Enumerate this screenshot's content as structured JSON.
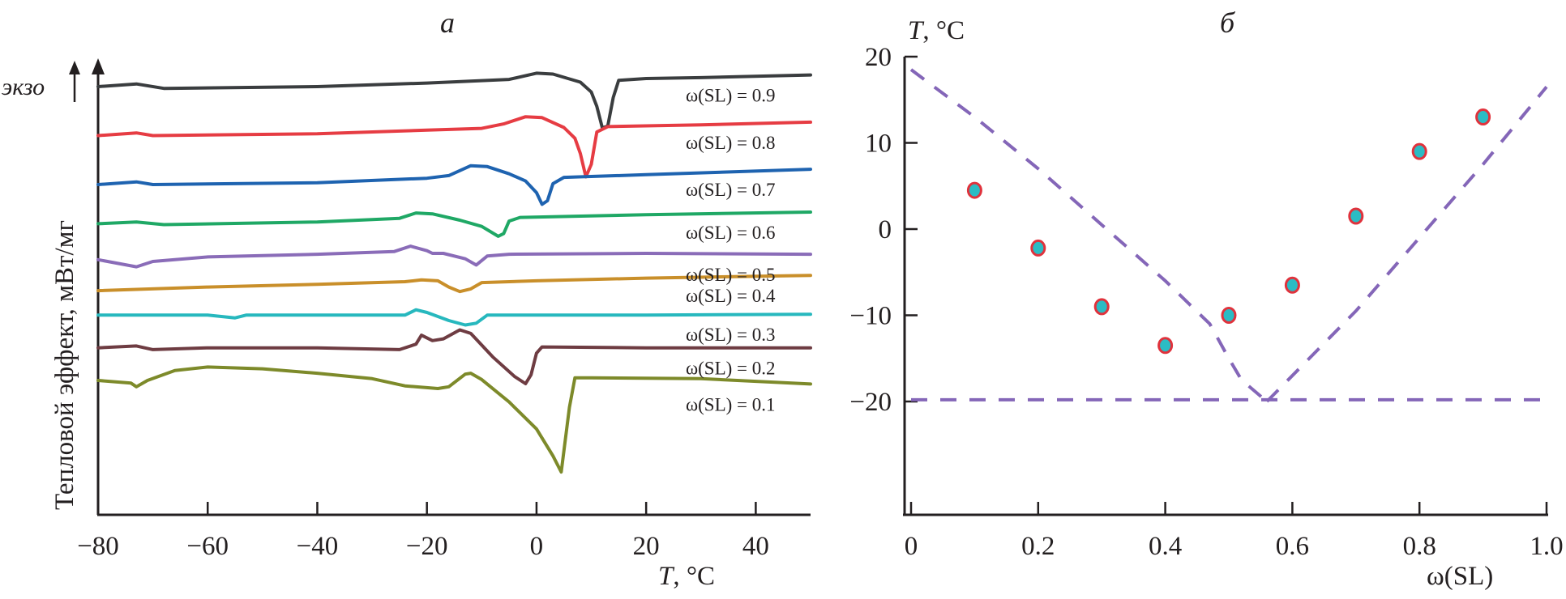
{
  "chart_data": [
    {
      "panel": "a",
      "type": "line",
      "title": "а",
      "xlabel": "T, °C",
      "xlabel_italic_part": "T",
      "xlabel_rest": ", °C",
      "ylabel": "Тепловой эффект, мВт/мг",
      "exo_label": "экзо",
      "xlim": [
        -80,
        50
      ],
      "xticks": [
        -80,
        -60,
        -40,
        -20,
        0,
        20,
        40
      ],
      "xtick_labels": [
        "−80",
        "−60",
        "−40",
        "−20",
        "0",
        "20",
        "40"
      ],
      "y_units": "relative (curves offset vertically, exo up)",
      "series": [
        {
          "name": "ω(SL) = 0.9",
          "color": "#3a3d3f",
          "baseline": 9.0,
          "points": [
            [
              -80,
              0
            ],
            [
              -73,
              0.15
            ],
            [
              -68,
              -0.1
            ],
            [
              -40,
              0
            ],
            [
              -20,
              0.2
            ],
            [
              -5,
              0.4
            ],
            [
              0,
              0.75
            ],
            [
              3,
              0.7
            ],
            [
              8,
              0.25
            ],
            [
              10,
              -0.3
            ],
            [
              11,
              -1.1
            ],
            [
              12,
              -2.3
            ],
            [
              13,
              -2.2
            ],
            [
              14,
              -0.6
            ],
            [
              15,
              0.35
            ],
            [
              20,
              0.45
            ],
            [
              30,
              0.5
            ],
            [
              50,
              0.65
            ]
          ]
        },
        {
          "name": "ω(SL) = 0.8",
          "color": "#e63c43",
          "baseline": 7.5,
          "points": [
            [
              -80,
              0
            ],
            [
              -73,
              0.15
            ],
            [
              -70,
              0
            ],
            [
              -40,
              0.1
            ],
            [
              -20,
              0.3
            ],
            [
              -10,
              0.4
            ],
            [
              -6,
              0.65
            ],
            [
              -2,
              1.05
            ],
            [
              1,
              1.0
            ],
            [
              5,
              0.45
            ],
            [
              7,
              -0.15
            ],
            [
              8,
              -1.0
            ],
            [
              9,
              -2.3
            ],
            [
              10,
              -1.6
            ],
            [
              11,
              0.2
            ],
            [
              13,
              0.5
            ],
            [
              30,
              0.6
            ],
            [
              50,
              0.75
            ]
          ]
        },
        {
          "name": "ω(SL) = 0.7",
          "color": "#1e63b0",
          "baseline": 6.0,
          "points": [
            [
              -80,
              0
            ],
            [
              -73,
              0.15
            ],
            [
              -70,
              0
            ],
            [
              -40,
              0.1
            ],
            [
              -20,
              0.35
            ],
            [
              -16,
              0.5
            ],
            [
              -12,
              1.05
            ],
            [
              -9,
              1.0
            ],
            [
              -5,
              0.6
            ],
            [
              -2,
              0.2
            ],
            [
              0,
              -0.45
            ],
            [
              1,
              -1.1
            ],
            [
              2,
              -0.9
            ],
            [
              3,
              0.05
            ],
            [
              5,
              0.4
            ],
            [
              20,
              0.55
            ],
            [
              50,
              0.85
            ]
          ]
        },
        {
          "name": "ω(SL) = 0.6",
          "color": "#1fa865",
          "baseline": 4.8,
          "points": [
            [
              -80,
              0
            ],
            [
              -73,
              0.1
            ],
            [
              -68,
              -0.05
            ],
            [
              -40,
              0.1
            ],
            [
              -25,
              0.3
            ],
            [
              -22,
              0.6
            ],
            [
              -19,
              0.55
            ],
            [
              -14,
              0.2
            ],
            [
              -10,
              -0.15
            ],
            [
              -7,
              -0.7
            ],
            [
              -6,
              -0.55
            ],
            [
              -5,
              0.15
            ],
            [
              -3,
              0.35
            ],
            [
              20,
              0.5
            ],
            [
              50,
              0.65
            ]
          ]
        },
        {
          "name": "ω(SL) = 0.5",
          "color": "#8a6cb8",
          "baseline": 3.7,
          "points": [
            [
              -80,
              0
            ],
            [
              -73,
              -0.4
            ],
            [
              -70,
              -0.1
            ],
            [
              -60,
              0.15
            ],
            [
              -40,
              0.3
            ],
            [
              -26,
              0.45
            ],
            [
              -23,
              0.75
            ],
            [
              -20,
              0.5
            ],
            [
              -19,
              0.35
            ],
            [
              -17,
              0.35
            ],
            [
              -13,
              0.05
            ],
            [
              -11,
              -0.3
            ],
            [
              -9,
              0.2
            ],
            [
              -5,
              0.3
            ],
            [
              20,
              0.35
            ],
            [
              50,
              0.3
            ]
          ]
        },
        {
          "name": "ω(SL) = 0.4",
          "color": "#c98f2a",
          "baseline": 2.75,
          "points": [
            [
              -80,
              0
            ],
            [
              -60,
              0.2
            ],
            [
              -40,
              0.35
            ],
            [
              -24,
              0.5
            ],
            [
              -21,
              0.6
            ],
            [
              -18,
              0.55
            ],
            [
              -16,
              0.2
            ],
            [
              -14,
              -0.05
            ],
            [
              -12,
              0.1
            ],
            [
              -10,
              0.45
            ],
            [
              0,
              0.55
            ],
            [
              20,
              0.7
            ],
            [
              50,
              0.85
            ]
          ]
        },
        {
          "name": "ω(SL) = 0.3",
          "color": "#27b8be",
          "baseline": 2.0,
          "points": [
            [
              -80,
              0
            ],
            [
              -60,
              0
            ],
            [
              -55,
              -0.15
            ],
            [
              -53,
              0
            ],
            [
              -40,
              0
            ],
            [
              -24,
              0
            ],
            [
              -22,
              0.3
            ],
            [
              -20,
              0.15
            ],
            [
              -16,
              -0.3
            ],
            [
              -13,
              -0.55
            ],
            [
              -11,
              -0.45
            ],
            [
              -9,
              0
            ],
            [
              0,
              0
            ],
            [
              20,
              0
            ],
            [
              50,
              0.05
            ]
          ]
        },
        {
          "name": "ω(SL) = 0.2",
          "color": "#6e3c42",
          "baseline": 1.0,
          "points": [
            [
              -80,
              0
            ],
            [
              -73,
              0.1
            ],
            [
              -70,
              -0.1
            ],
            [
              -60,
              0
            ],
            [
              -40,
              0
            ],
            [
              -25,
              -0.1
            ],
            [
              -22,
              0.2
            ],
            [
              -21,
              0.7
            ],
            [
              -19,
              0.4
            ],
            [
              -17,
              0.5
            ],
            [
              -14,
              1.0
            ],
            [
              -12,
              0.8
            ],
            [
              -8,
              -0.5
            ],
            [
              -4,
              -1.6
            ],
            [
              -2,
              -2.0
            ],
            [
              -1,
              -1.5
            ],
            [
              0,
              -0.3
            ],
            [
              1,
              0.05
            ],
            [
              20,
              0
            ],
            [
              50,
              0
            ]
          ]
        },
        {
          "name": "ω(SL) = 0.1",
          "color": "#7d8a2a",
          "baseline": 0.0,
          "points": [
            [
              -80,
              0
            ],
            [
              -74,
              -0.15
            ],
            [
              -73,
              -0.35
            ],
            [
              -71,
              0
            ],
            [
              -66,
              0.55
            ],
            [
              -60,
              0.75
            ],
            [
              -50,
              0.65
            ],
            [
              -40,
              0.4
            ],
            [
              -30,
              0.1
            ],
            [
              -24,
              -0.3
            ],
            [
              -18,
              -0.45
            ],
            [
              -16,
              -0.35
            ],
            [
              -13,
              0.35
            ],
            [
              -12,
              0.4
            ],
            [
              -10,
              0.05
            ],
            [
              -5,
              -1.2
            ],
            [
              0,
              -2.7
            ],
            [
              3,
              -4.2
            ],
            [
              4.5,
              -5.1
            ],
            [
              6,
              -1.5
            ],
            [
              7,
              0.15
            ],
            [
              10,
              0.15
            ],
            [
              30,
              0.1
            ],
            [
              50,
              -0.2
            ]
          ]
        }
      ]
    },
    {
      "panel": "б",
      "type": "scatter",
      "title": "б",
      "xlabel": "ω(SL)",
      "ylabel": "T, °C",
      "ylabel_italic_part": "T",
      "ylabel_rest": ", °C",
      "xlim": [
        0,
        1.0
      ],
      "ylim": [
        -25,
        20
      ],
      "xticks": [
        0,
        0.2,
        0.4,
        0.6,
        0.8,
        1.0
      ],
      "xtick_labels": [
        "0",
        "0.2",
        "0.4",
        "0.6",
        "0.8",
        "1.0"
      ],
      "yticks": [
        20,
        10,
        0,
        -10,
        -20
      ],
      "ytick_labels": [
        "20",
        "10",
        "0",
        "−10",
        "−20"
      ],
      "points": {
        "x": [
          0.1,
          0.2,
          0.3,
          0.4,
          0.5,
          0.6,
          0.7,
          0.8,
          0.9
        ],
        "y": [
          4.5,
          -2.2,
          -9.0,
          -13.5,
          -10.0,
          -6.5,
          1.5,
          9.0,
          13.0
        ],
        "fill": "#2bbcc4",
        "edge": "#e0323c"
      },
      "lines": [
        {
          "name": "liquidus-left",
          "style": "dashed",
          "color": "#8466b8",
          "x": [
            0.0,
            0.1,
            0.2,
            0.3,
            0.4,
            0.47,
            0.5,
            0.52,
            0.56
          ],
          "y": [
            18.5,
            13.0,
            7.0,
            0.5,
            -6.0,
            -11.0,
            -15.0,
            -17.5,
            -20.0
          ]
        },
        {
          "name": "liquidus-right",
          "style": "dashed",
          "color": "#8466b8",
          "x": [
            0.56,
            0.7,
            0.8,
            0.9,
            1.0
          ],
          "y": [
            -20.0,
            -9.5,
            -1.0,
            7.5,
            16.5
          ]
        },
        {
          "name": "eutectic",
          "style": "dashed",
          "color": "#8466b8",
          "x": [
            0.0,
            1.0
          ],
          "y": [
            -19.8,
            -19.8
          ]
        }
      ]
    }
  ]
}
